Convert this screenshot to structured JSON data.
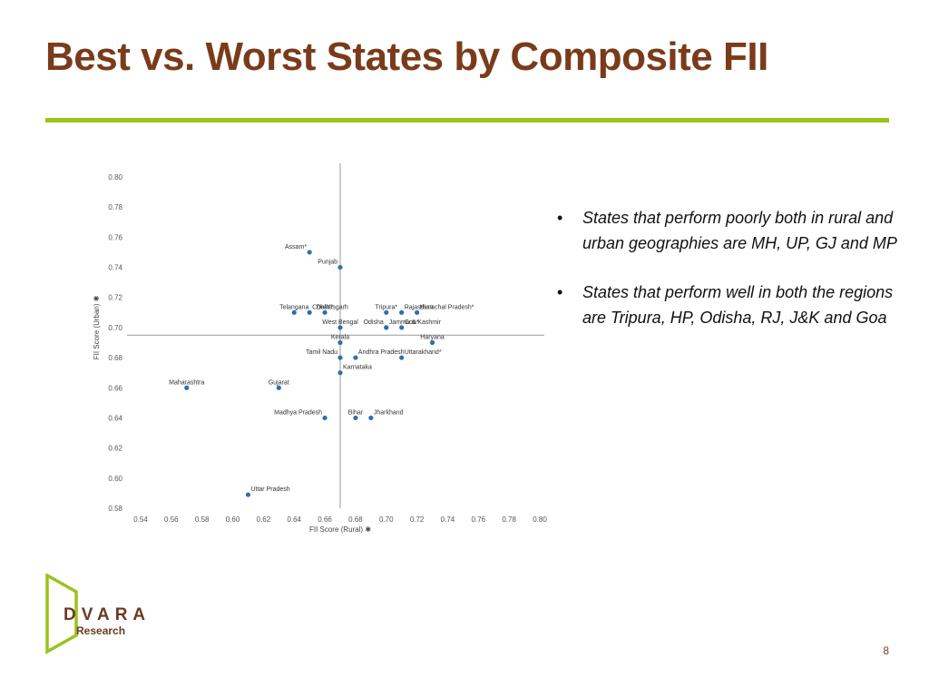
{
  "title": "Best vs. Worst States by Composite FII",
  "bullets": [
    "States that perform poorly both in rural and urban geographies are MH, UP, GJ and MP",
    "States that perform well in both the regions are Tripura, HP, Odisha, RJ, J&K and Goa"
  ],
  "bullet_marker": "•",
  "logo": {
    "name": "DVARA",
    "subtitle": "Research"
  },
  "page_number": "8",
  "colors": {
    "title": "#7a3b1a",
    "rule": "#9bc31c",
    "points": "#2f6fae",
    "logo_green": "#9bc31c",
    "logo_brown": "#6b3a22"
  },
  "chart_data": {
    "type": "scatter",
    "xlabel": "FII Score (Rural) ✱",
    "ylabel": "FII Score (Urban) ✱",
    "xlim": [
      0.54,
      0.8
    ],
    "ylim": [
      0.58,
      0.8
    ],
    "xticks": [
      "0.54",
      "0.56",
      "0.58",
      "0.60",
      "0.62",
      "0.64",
      "0.66",
      "0.68",
      "0.70",
      "0.72",
      "0.74",
      "0.76",
      "0.78",
      "0.80"
    ],
    "yticks": [
      "0.58",
      "0.60",
      "0.62",
      "0.64",
      "0.66",
      "0.68",
      "0.70",
      "0.72",
      "0.74",
      "0.76",
      "0.78",
      "0.80"
    ],
    "grid": false,
    "divider": {
      "x": 0.67,
      "y": 0.695
    },
    "points": [
      {
        "label": "Assam*",
        "x": 0.65,
        "y": 0.75,
        "anchor": "end"
      },
      {
        "label": "Punjab",
        "x": 0.67,
        "y": 0.74,
        "anchor": "end"
      },
      {
        "label": "Telangana",
        "x": 0.64,
        "y": 0.71,
        "anchor": "middle"
      },
      {
        "label": "Delhi*",
        "x": 0.66,
        "y": 0.71,
        "anchor": "middle"
      },
      {
        "label": "Chhattisgarh",
        "x": 0.65,
        "y": 0.71,
        "anchor": "start"
      },
      {
        "label": "Tripura*",
        "x": 0.7,
        "y": 0.71,
        "anchor": "middle"
      },
      {
        "label": "Himachal Pradesh*",
        "x": 0.72,
        "y": 0.71,
        "anchor": "start"
      },
      {
        "label": "Rajasthan",
        "x": 0.71,
        "y": 0.71,
        "anchor": "start"
      },
      {
        "label": "Odisha",
        "x": 0.7,
        "y": 0.7,
        "anchor": "end"
      },
      {
        "label": "Jammu & Kashmir",
        "x": 0.7,
        "y": 0.7,
        "anchor": "start"
      },
      {
        "label": "West Bengal",
        "x": 0.67,
        "y": 0.7,
        "anchor": "middle"
      },
      {
        "label": "Goa*",
        "x": 0.71,
        "y": 0.7,
        "anchor": "start"
      },
      {
        "label": "Kerala",
        "x": 0.67,
        "y": 0.69,
        "anchor": "middle"
      },
      {
        "label": "Andhra Pradesh",
        "x": 0.68,
        "y": 0.68,
        "anchor": "start"
      },
      {
        "label": "Haryana",
        "x": 0.73,
        "y": 0.69,
        "anchor": "middle"
      },
      {
        "label": "Tamil Nadu",
        "x": 0.67,
        "y": 0.68,
        "anchor": "end"
      },
      {
        "label": "Uttarakhand*",
        "x": 0.71,
        "y": 0.68,
        "anchor": "start"
      },
      {
        "label": "Karnataka",
        "x": 0.67,
        "y": 0.67,
        "anchor": "start"
      },
      {
        "label": "Maharashtra",
        "x": 0.57,
        "y": 0.66,
        "anchor": "middle"
      },
      {
        "label": "Gujarat",
        "x": 0.63,
        "y": 0.66,
        "anchor": "middle"
      },
      {
        "label": "Bihar",
        "x": 0.68,
        "y": 0.64,
        "anchor": "middle"
      },
      {
        "label": "Jharkhand",
        "x": 0.69,
        "y": 0.64,
        "anchor": "start"
      },
      {
        "label": "Madhya Pradesh",
        "x": 0.66,
        "y": 0.64,
        "anchor": "end"
      },
      {
        "label": "Uttar Pradesh",
        "x": 0.61,
        "y": 0.589,
        "anchor": "start"
      }
    ]
  }
}
